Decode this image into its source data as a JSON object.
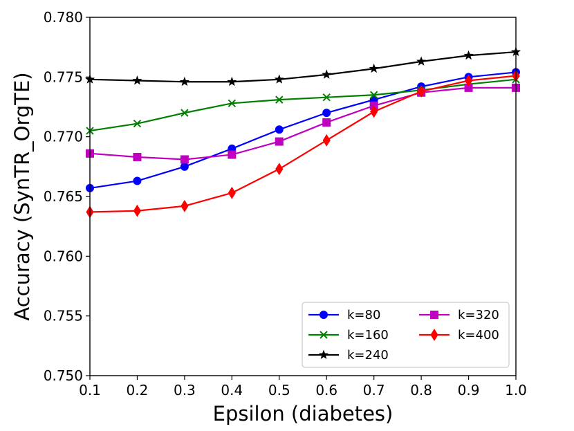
{
  "chart_data": {
    "type": "line",
    "title": "",
    "xlabel": "Epsilon (diabetes)",
    "ylabel": "Accuracy  (SynTR_OrgTE)",
    "x": [
      0.1,
      0.2,
      0.3,
      0.4,
      0.5,
      0.6,
      0.7,
      0.8,
      0.9,
      1.0
    ],
    "xlim": [
      0.1,
      1.0
    ],
    "ylim": [
      0.75,
      0.78
    ],
    "xticks": [
      "0.1",
      "0.2",
      "0.3",
      "0.4",
      "0.5",
      "0.6",
      "0.7",
      "0.8",
      "0.9",
      "1.0"
    ],
    "yticks": [
      "0.750",
      "0.755",
      "0.760",
      "0.765",
      "0.770",
      "0.775",
      "0.780"
    ],
    "ytick_values": [
      0.75,
      0.755,
      0.76,
      0.765,
      0.77,
      0.775,
      0.78
    ],
    "grid": false,
    "legend_position": "lower-right",
    "series": [
      {
        "name": "k=80",
        "color": "#0000ff",
        "marker": "circle",
        "values": [
          0.7657,
          0.7663,
          0.7675,
          0.769,
          0.7706,
          0.772,
          0.7731,
          0.7742,
          0.775,
          0.7754
        ]
      },
      {
        "name": "k=160",
        "color": "#008000",
        "marker": "x",
        "values": [
          0.7705,
          0.7711,
          0.772,
          0.7728,
          0.7731,
          0.7733,
          0.7735,
          0.7739,
          0.7744,
          0.7748
        ]
      },
      {
        "name": "k=240",
        "color": "#000000",
        "marker": "star",
        "values": [
          0.7748,
          0.7747,
          0.7746,
          0.7746,
          0.7748,
          0.7752,
          0.7757,
          0.7763,
          0.7768,
          0.7771
        ]
      },
      {
        "name": "k=320",
        "color": "#bf00bf",
        "marker": "square",
        "values": [
          0.7686,
          0.7683,
          0.7681,
          0.7685,
          0.7696,
          0.7712,
          0.7726,
          0.7737,
          0.7741,
          0.7741
        ]
      },
      {
        "name": "k=400",
        "color": "#ff0000",
        "marker": "diamond",
        "values": [
          0.7637,
          0.7638,
          0.7642,
          0.7653,
          0.7673,
          0.7697,
          0.7721,
          0.7738,
          0.7747,
          0.7751
        ]
      }
    ]
  }
}
